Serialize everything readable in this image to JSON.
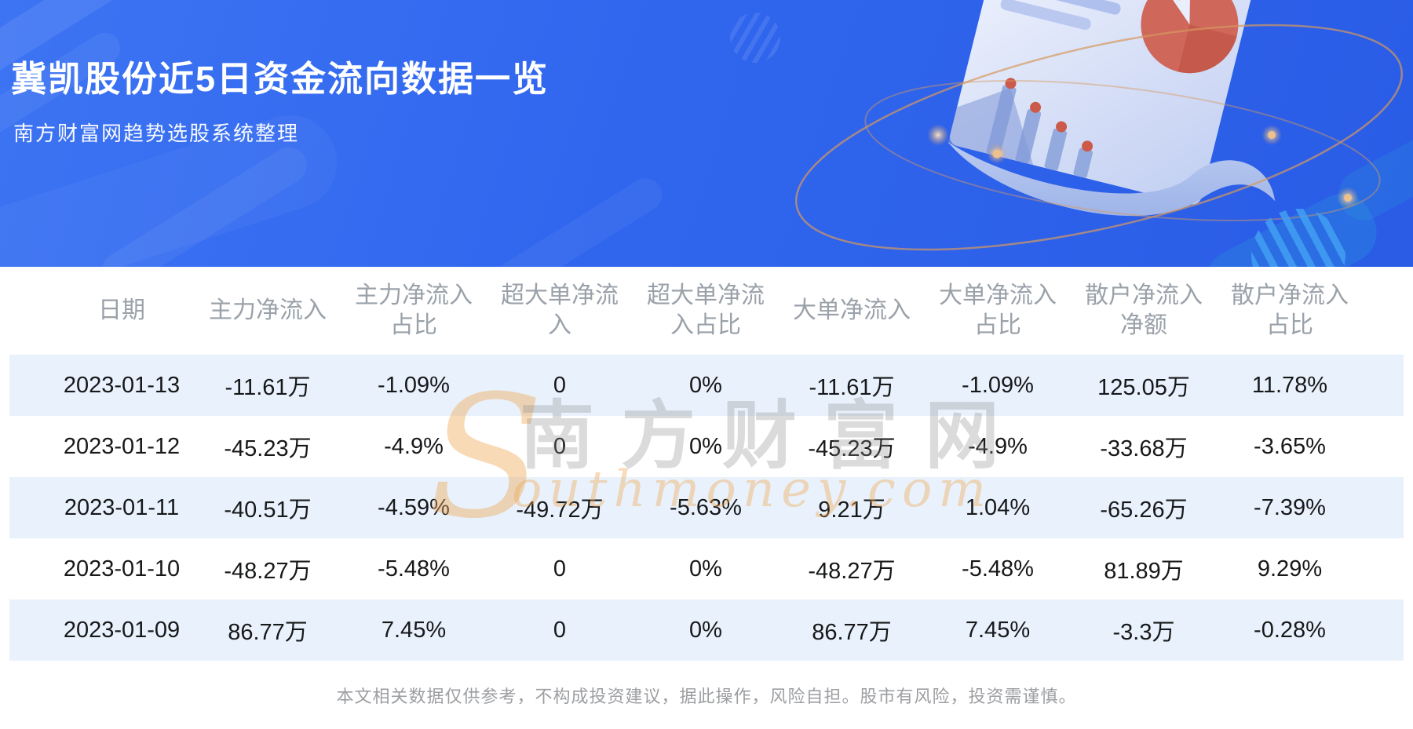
{
  "banner": {
    "title": "冀凯股份近5日资金流向数据一览",
    "subtitle": "南方财富网趋势选股系统整理"
  },
  "chart_data": {
    "type": "table",
    "title": "冀凯股份近5日资金流向数据一览",
    "columns": [
      "日期",
      "主力净流入",
      "主力净流入\n占比",
      "超大单净流\n入",
      "超大单净流\n入占比",
      "大单净流入",
      "大单净流入\n占比",
      "散户净流入\n净额",
      "散户净流入\n占比"
    ],
    "rows": [
      [
        "2023-01-13",
        "-11.61万",
        "-1.09%",
        "0",
        "0%",
        "-11.61万",
        "-1.09%",
        "125.05万",
        "11.78%"
      ],
      [
        "2023-01-12",
        "-45.23万",
        "-4.9%",
        "0",
        "0%",
        "-45.23万",
        "-4.9%",
        "-33.68万",
        "-3.65%"
      ],
      [
        "2023-01-11",
        "-40.51万",
        "-4.59%",
        "-49.72万",
        "-5.63%",
        "9.21万",
        "1.04%",
        "-65.26万",
        "-7.39%"
      ],
      [
        "2023-01-10",
        "-48.27万",
        "-5.48%",
        "0",
        "0%",
        "-48.27万",
        "-5.48%",
        "81.89万",
        "9.29%"
      ],
      [
        "2023-01-09",
        "86.77万",
        "7.45%",
        "0",
        "0%",
        "86.77万",
        "7.45%",
        "-3.3万",
        "-0.28%"
      ]
    ]
  },
  "watermark": {
    "initial": "S",
    "cjk": "南方财富网",
    "latin": "outhmoney.com"
  },
  "footer": {
    "disclaimer": "本文相关数据仅供参考，不构成投资建议，据此操作，风险自担。股市有风险，投资需谨慎。"
  },
  "colors": {
    "banner_blue": "#3066ee",
    "row_stripe": "#e9f2fc",
    "header_text": "#9aa1a9",
    "cell_text": "#17181a",
    "pie_red": "#cf675b",
    "pie_yellow": "#d8ce74",
    "orbit_orange": "#d6995f",
    "watermark_orange": "#f0a855"
  }
}
